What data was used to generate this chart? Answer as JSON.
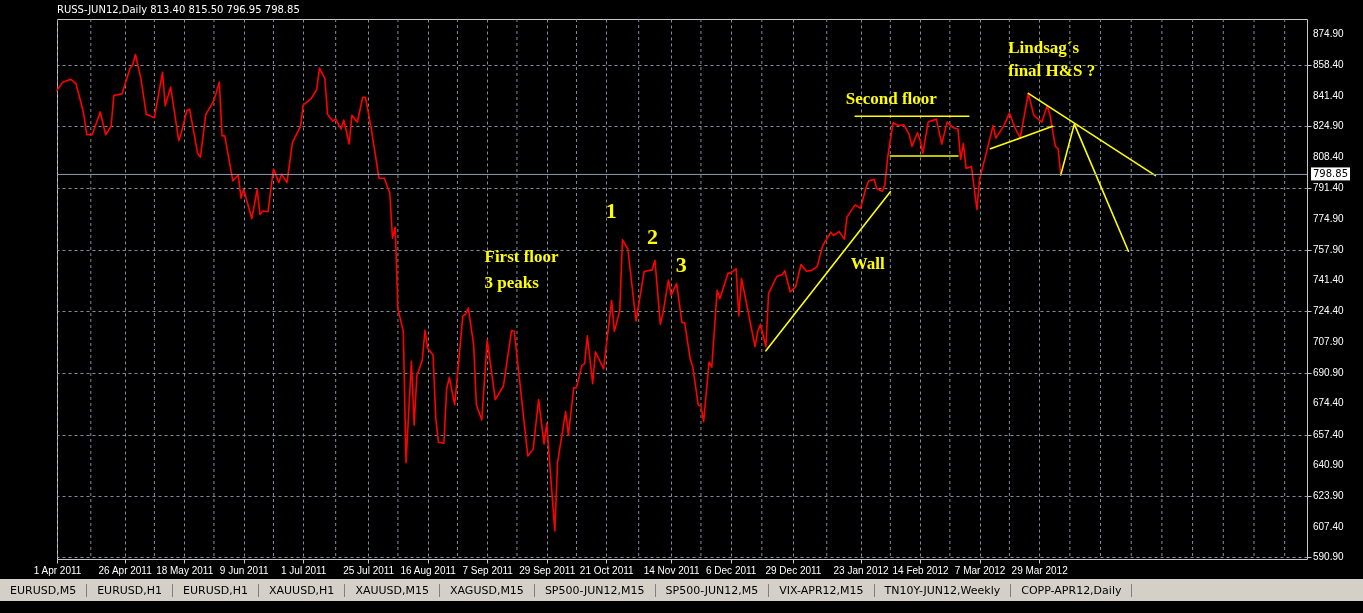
{
  "chart_data": {
    "type": "line",
    "title": "RUSS-JUN12,Daily  813.40 815.50 796.95 798.85",
    "xlim": [
      "2011-04-01",
      "2012-07-06"
    ],
    "ylim": [
      589.9,
      883.3
    ],
    "xticks": [
      {
        "value": "2011-04-01",
        "label": "1 Apr 2011"
      },
      {
        "value": "2011-04-26",
        "label": "26 Apr 2011"
      },
      {
        "value": "2011-05-18",
        "label": "18 May 2011"
      },
      {
        "value": "2011-06-09",
        "label": "9 Jun 2011"
      },
      {
        "value": "2011-07-01",
        "label": "1 Jul 2011"
      },
      {
        "value": "2011-07-25",
        "label": "25 Jul 2011"
      },
      {
        "value": "2011-08-16",
        "label": "16 Aug 2011"
      },
      {
        "value": "2011-09-07",
        "label": "7 Sep 2011"
      },
      {
        "value": "2011-09-29",
        "label": "29 Sep 2011"
      },
      {
        "value": "2011-10-21",
        "label": "21 Oct 2011"
      },
      {
        "value": "2011-11-14",
        "label": "14 Nov 2011"
      },
      {
        "value": "2011-12-06",
        "label": "6 Dec 2011"
      },
      {
        "value": "2011-12-29",
        "label": "29 Dec 2011"
      },
      {
        "value": "2012-01-23",
        "label": "23 Jan 2012"
      },
      {
        "value": "2012-02-14",
        "label": "14 Feb 2012"
      },
      {
        "value": "2012-03-07",
        "label": "7 Mar 2012"
      },
      {
        "value": "2012-03-29",
        "label": "29 Mar 2012"
      }
    ],
    "yticks": [
      {
        "value": 590.9,
        "label": "590.90"
      },
      {
        "value": 607.4,
        "label": "607.40"
      },
      {
        "value": 623.9,
        "label": "623.90"
      },
      {
        "value": 640.9,
        "label": "640.90"
      },
      {
        "value": 657.4,
        "label": "657.40"
      },
      {
        "value": 674.4,
        "label": "674.40"
      },
      {
        "value": 690.9,
        "label": "690.90"
      },
      {
        "value": 707.9,
        "label": "707.90"
      },
      {
        "value": 724.4,
        "label": "724.40"
      },
      {
        "value": 741.4,
        "label": "741.40"
      },
      {
        "value": 757.9,
        "label": "757.90"
      },
      {
        "value": 774.9,
        "label": "774.90"
      },
      {
        "value": 791.4,
        "label": "791.40"
      },
      {
        "value": 808.4,
        "label": "808.40"
      },
      {
        "value": 824.9,
        "label": "824.90"
      },
      {
        "value": 841.4,
        "label": "841.40"
      },
      {
        "value": 858.4,
        "label": "858.40"
      },
      {
        "value": 874.9,
        "label": "874.90"
      }
    ],
    "grid": true,
    "series": [
      {
        "color": "#ff0000",
        "x": [
          "2011-04-01",
          "2011-04-03",
          "2011-04-06",
          "2011-04-08",
          "2011-04-10",
          "2011-04-11",
          "2011-04-12",
          "2011-04-14",
          "2011-04-17",
          "2011-04-19",
          "2011-04-21",
          "2011-04-22",
          "2011-04-25",
          "2011-04-28",
          "2011-04-29",
          "2011-04-30",
          "2011-05-02",
          "2011-05-04",
          "2011-05-07",
          "2011-05-10",
          "2011-05-11",
          "2011-05-13",
          "2011-05-16",
          "2011-05-17",
          "2011-05-19",
          "2011-05-20",
          "2011-05-23",
          "2011-05-24",
          "2011-05-26",
          "2011-05-29",
          "2011-05-31",
          "2011-06-01",
          "2011-06-02",
          "2011-06-05",
          "2011-06-07",
          "2011-06-08",
          "2011-06-09",
          "2011-06-12",
          "2011-06-14",
          "2011-06-15",
          "2011-06-16",
          "2011-06-18",
          "2011-06-20",
          "2011-06-22",
          "2011-06-23",
          "2011-06-25",
          "2011-06-27",
          "2011-06-30",
          "2011-07-01",
          "2011-07-04",
          "2011-07-06",
          "2011-07-07",
          "2011-07-09",
          "2011-07-10",
          "2011-07-12",
          "2011-07-13",
          "2011-07-15",
          "2011-07-16",
          "2011-07-18",
          "2011-07-19",
          "2011-07-21",
          "2011-07-23",
          "2011-07-24",
          "2011-07-26",
          "2011-07-29",
          "2011-07-31",
          "2011-08-02",
          "2011-08-03",
          "2011-08-04",
          "2011-08-05",
          "2011-08-07",
          "2011-08-08",
          "2011-08-10",
          "2011-08-11",
          "2011-08-12",
          "2011-08-14",
          "2011-08-15",
          "2011-08-16",
          "2011-08-18",
          "2011-08-19",
          "2011-08-20",
          "2011-08-22",
          "2011-08-23",
          "2011-08-24",
          "2011-08-26",
          "2011-08-29",
          "2011-08-30",
          "2011-08-31",
          "2011-09-02",
          "2011-09-03",
          "2011-09-05",
          "2011-09-07",
          "2011-09-10",
          "2011-09-13",
          "2011-09-16",
          "2011-09-17",
          "2011-09-19",
          "2011-09-22",
          "2011-09-24",
          "2011-09-26",
          "2011-09-28",
          "2011-09-29",
          "2011-10-02",
          "2011-10-03",
          "2011-10-06",
          "2011-10-07",
          "2011-10-09",
          "2011-10-10",
          "2011-10-12",
          "2011-10-13",
          "2011-10-14",
          "2011-10-16",
          "2011-10-17",
          "2011-10-20",
          "2011-10-23",
          "2011-10-24",
          "2011-10-26",
          "2011-10-27",
          "2011-10-29",
          "2011-11-01",
          "2011-11-04",
          "2011-11-07",
          "2011-11-08",
          "2011-11-10",
          "2011-11-11",
          "2011-11-13",
          "2011-11-14",
          "2011-11-16",
          "2011-11-18",
          "2011-11-19",
          "2011-11-21",
          "2011-11-22",
          "2011-11-24",
          "2011-11-25",
          "2011-11-26",
          "2011-11-28",
          "2011-11-29",
          "2011-12-01",
          "2011-12-02",
          "2011-12-03",
          "2011-12-05",
          "2011-12-06",
          "2011-12-08",
          "2011-12-09",
          "2011-12-10",
          "2011-12-15",
          "2011-12-16",
          "2011-12-17",
          "2011-12-19",
          "2011-12-20",
          "2011-12-23",
          "2011-12-25",
          "2011-12-26",
          "2011-12-28",
          "2011-12-30",
          "2012-01-01",
          "2012-01-03",
          "2012-01-05",
          "2012-01-07",
          "2012-01-09",
          "2012-01-12",
          "2012-01-13",
          "2012-01-15",
          "2012-01-17",
          "2012-01-18",
          "2012-01-21",
          "2012-01-23",
          "2012-01-25",
          "2012-01-26",
          "2012-01-28",
          "2012-01-29",
          "2012-01-31",
          "2012-02-01",
          "2012-02-02",
          "2012-02-04",
          "2012-02-06",
          "2012-02-08",
          "2012-02-10",
          "2012-02-11",
          "2012-02-13",
          "2012-02-14",
          "2012-02-15",
          "2012-02-17",
          "2012-02-20",
          "2012-02-22",
          "2012-02-24",
          "2012-02-26",
          "2012-02-28",
          "2012-02-29",
          "2012-03-01",
          "2012-03-02",
          "2012-03-04",
          "2012-03-06",
          "2012-03-07",
          "2012-03-10",
          "2012-03-12",
          "2012-03-13",
          "2012-03-16",
          "2012-03-18",
          "2012-03-20",
          "2012-03-22",
          "2012-03-25",
          "2012-03-27",
          "2012-03-28",
          "2012-03-30",
          "2012-04-01",
          "2012-04-02",
          "2012-04-04",
          "2012-04-05",
          "2012-04-06"
        ],
        "values": [
          844.5,
          848.8,
          850.6,
          848.2,
          837.1,
          830.6,
          820.4,
          820.4,
          832.8,
          820.4,
          825.0,
          841.7,
          842.6,
          856.6,
          858.4,
          864.0,
          851.0,
          831.5,
          829.7,
          854.3,
          836.1,
          846.3,
          817.2,
          821.7,
          833.7,
          834.3,
          810.2,
          808.3,
          831.5,
          838.9,
          849.1,
          819.8,
          819.8,
          795.3,
          798.5,
          786.0,
          790.7,
          774.9,
          790.7,
          777.1,
          779.0,
          778.6,
          801.8,
          794.4,
          799.0,
          794.4,
          816.1,
          825.0,
          836.5,
          840.2,
          845.0,
          856.6,
          851.0,
          831.5,
          827.8,
          829.1,
          823.5,
          828.4,
          815.4,
          831.0,
          827.2,
          840.8,
          840.8,
          825.0,
          796.8,
          796.8,
          788.8,
          764.2,
          770.2,
          725.7,
          713.6,
          642.2,
          697.3,
          662.6,
          689.5,
          697.9,
          714.2,
          704.4,
          700.7,
          666.3,
          653.3,
          652.8,
          682.1,
          688.6,
          673.7,
          722.0,
          722.9,
          726.3,
          706.2,
          673.7,
          665.4,
          709.0,
          676.5,
          683.9,
          714.0,
          713.6,
          686.7,
          645.9,
          649.6,
          676.5,
          652.4,
          663.6,
          605.1,
          642.2,
          670.0,
          657.0,
          683.0,
          683.0,
          695.1,
          696.0,
          711.2,
          685.2,
          702.5,
          693.2,
          730.3,
          713.6,
          724.8,
          763.4,
          758.2,
          719.2,
          746.1,
          747.0,
          752.2,
          717.4,
          723.8,
          741.5,
          733.1,
          739.6,
          718.3,
          718.3,
          698.8,
          694.1,
          673.7,
          672.8,
          664.5,
          696.9,
          694.1,
          735.9,
          731.3,
          735.9,
          745.2,
          745.2,
          747.6,
          722.0,
          742.4,
          705.3,
          713.6,
          717.4,
          705.3,
          734.1,
          743.4,
          744.3,
          746.5,
          735.0,
          737.8,
          749.9,
          746.2,
          746.7,
          748.9,
          760.1,
          767.5,
          765.6,
          767.8,
          763.7,
          775.8,
          782.3,
          780.5,
          791.6,
          795.3,
          796.2,
          791.2,
          789.7,
          793.3,
          807.9,
          826.9,
          825.4,
          825.8,
          820.5,
          814.1,
          821.5,
          817.6,
          810.3,
          827.3,
          828.9,
          815.3,
          827.3,
          824.4,
          823.5,
          807.0,
          815.7,
          802.1,
          803.1,
          779.8,
          796.3,
          813.7,
          825.4,
          818.6,
          825.4,
          832.2,
          824.4,
          818.6,
          842.9,
          831.2,
          829.7,
          827.3,
          836.1,
          831.2,
          814.1,
          812.8,
          798.9
        ]
      },
      {
        "type": "line",
        "color": "#ffff00",
        "x": [
          "2011-12-19",
          "2012-02-03"
        ],
        "values": [
          703.0,
          789.5
        ]
      },
      {
        "type": "line",
        "color": "#ffff00",
        "x": [
          "2012-01-21",
          "2012-03-03"
        ],
        "values": [
          830.5,
          830.5
        ]
      },
      {
        "type": "line",
        "color": "#ffff00",
        "x": [
          "2012-02-03",
          "2012-02-28"
        ],
        "values": [
          808.9,
          808.9
        ]
      },
      {
        "type": "line",
        "color": "#ffff00",
        "x": [
          "2012-03-11",
          "2012-04-03"
        ],
        "values": [
          812.8,
          825.0
        ]
      },
      {
        "type": "line",
        "color": "#ffff00",
        "x": [
          "2012-03-25",
          "2012-05-11"
        ],
        "values": [
          842.9,
          798.2
        ]
      },
      {
        "type": "line",
        "color": "#ffff00",
        "x": [
          "2012-04-06",
          "2012-04-11",
          "2012-05-01"
        ],
        "values": [
          798.6,
          826.2,
          757.1
        ]
      }
    ],
    "ref_lines": [
      {
        "axis": "y",
        "value": 798.85,
        "label": "798.85",
        "color": "#8c9db0"
      }
    ],
    "annotations": [
      "1",
      "2",
      "3",
      "First floor",
      "3 peaks",
      "Wall",
      "Second floor",
      "Lindsag´s",
      "final H&S ?",
      "EURUSD,M5",
      "EURUSD,H1",
      "EURUSD,H1",
      "XAUUSD,H1",
      "XAUUSD,M15",
      "XAGUSD,M15",
      "SP500-JUN12,M15",
      "SP500-JUN12,M5",
      "VIX-APR12,M15",
      "TN10Y-JUN12,Weekly",
      "COPP-APR12,Daily"
    ]
  }
}
